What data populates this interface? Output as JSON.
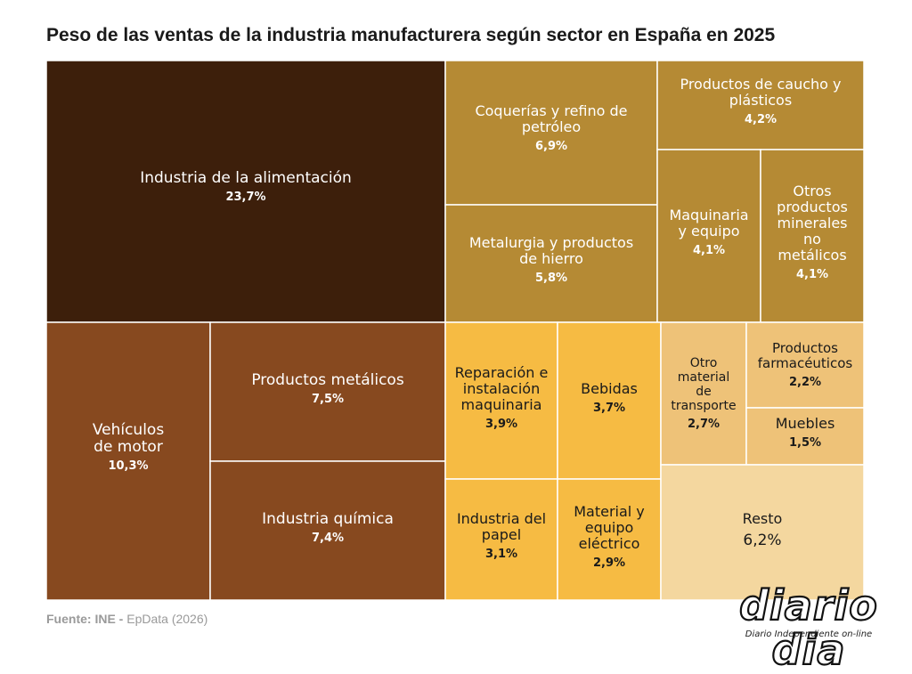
{
  "chart_data": {
    "type": "treemap",
    "title": "Peso de las ventas de la industria manufacturera según sector en España en 2025",
    "unit": "%",
    "items": [
      {
        "label": "Industria de la alimentación",
        "value": 23.7,
        "value_label": "23,7%",
        "color": "#3d1f0b"
      },
      {
        "label": "Coquerías y refino de petróleo",
        "value": 6.9,
        "value_label": "6,9%",
        "color": "#b58a34"
      },
      {
        "label": "Metalurgia y productos de hierro",
        "value": 5.8,
        "value_label": "5,8%",
        "color": "#b58a34"
      },
      {
        "label": "Productos de caucho y plásticos",
        "value": 4.2,
        "value_label": "4,2%",
        "color": "#b58a34"
      },
      {
        "label": "Maquinaria y equipo",
        "value": 4.1,
        "value_label": "4,1%",
        "color": "#b58a34"
      },
      {
        "label": "Otros productos minerales no metálicos",
        "value": 4.1,
        "value_label": "4,1%",
        "color": "#b58a34"
      },
      {
        "label": "Vehículos de motor",
        "value": 10.3,
        "value_label": "10,3%",
        "color": "#87491f"
      },
      {
        "label": "Productos metálicos",
        "value": 7.5,
        "value_label": "7,5%",
        "color": "#87491f"
      },
      {
        "label": "Industria química",
        "value": 7.4,
        "value_label": "7,4%",
        "color": "#87491f"
      },
      {
        "label": "Reparación e instalación maquinaria",
        "value": 3.9,
        "value_label": "3,9%",
        "color": "#f6bb43"
      },
      {
        "label": "Bebidas",
        "value": 3.7,
        "value_label": "3,7%",
        "color": "#f6bb43"
      },
      {
        "label": "Industria del papel",
        "value": 3.1,
        "value_label": "3,1%",
        "color": "#f6bb43"
      },
      {
        "label": "Material y equipo eléctrico",
        "value": 2.9,
        "value_label": "2,9%",
        "color": "#f6bb43"
      },
      {
        "label": "Otro material de transporte",
        "value": 2.7,
        "value_label": "2,7%",
        "color": "#eec278"
      },
      {
        "label": "Productos farmacéuticos",
        "value": 2.2,
        "value_label": "2,2%",
        "color": "#eec278"
      },
      {
        "label": "Muebles",
        "value": 1.5,
        "value_label": "1,5%",
        "color": "#eec278"
      },
      {
        "label": "Resto",
        "value": 6.2,
        "value_label": "6,2%",
        "color": "#f4d79f"
      }
    ]
  },
  "footer": {
    "source_label": "Fuente: INE",
    "separator": " - ",
    "provider": "EpData (2026)"
  },
  "logo": {
    "name": "diario dia",
    "tagline": "Diario Independiente on-line"
  }
}
